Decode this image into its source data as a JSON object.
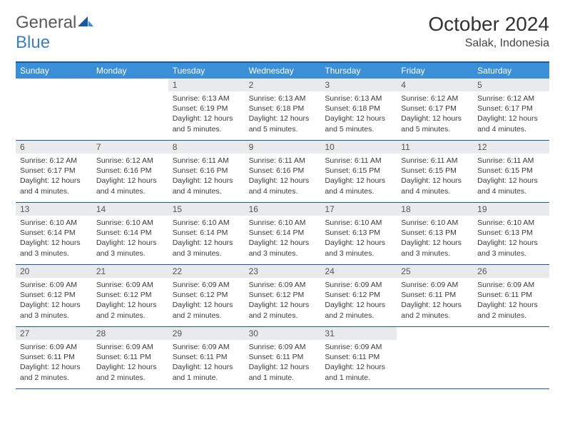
{
  "brand": {
    "word1": "General",
    "word2": "Blue"
  },
  "title": "October 2024",
  "location": "Salak, Indonesia",
  "colors": {
    "header_bar": "#3b8fd6",
    "rule": "#1a5a9e",
    "daynum_bg": "#e9eaeb",
    "text": "#3a3a3a",
    "logo_gray": "#5a5a5a",
    "logo_blue": "#3b7fc4"
  },
  "dow": [
    "Sunday",
    "Monday",
    "Tuesday",
    "Wednesday",
    "Thursday",
    "Friday",
    "Saturday"
  ],
  "weeks": [
    [
      null,
      null,
      {
        "n": "1",
        "sr": "Sunrise: 6:13 AM",
        "ss": "Sunset: 6:19 PM",
        "dl": "Daylight: 12 hours and 5 minutes."
      },
      {
        "n": "2",
        "sr": "Sunrise: 6:13 AM",
        "ss": "Sunset: 6:18 PM",
        "dl": "Daylight: 12 hours and 5 minutes."
      },
      {
        "n": "3",
        "sr": "Sunrise: 6:13 AM",
        "ss": "Sunset: 6:18 PM",
        "dl": "Daylight: 12 hours and 5 minutes."
      },
      {
        "n": "4",
        "sr": "Sunrise: 6:12 AM",
        "ss": "Sunset: 6:17 PM",
        "dl": "Daylight: 12 hours and 5 minutes."
      },
      {
        "n": "5",
        "sr": "Sunrise: 6:12 AM",
        "ss": "Sunset: 6:17 PM",
        "dl": "Daylight: 12 hours and 4 minutes."
      }
    ],
    [
      {
        "n": "6",
        "sr": "Sunrise: 6:12 AM",
        "ss": "Sunset: 6:17 PM",
        "dl": "Daylight: 12 hours and 4 minutes."
      },
      {
        "n": "7",
        "sr": "Sunrise: 6:12 AM",
        "ss": "Sunset: 6:16 PM",
        "dl": "Daylight: 12 hours and 4 minutes."
      },
      {
        "n": "8",
        "sr": "Sunrise: 6:11 AM",
        "ss": "Sunset: 6:16 PM",
        "dl": "Daylight: 12 hours and 4 minutes."
      },
      {
        "n": "9",
        "sr": "Sunrise: 6:11 AM",
        "ss": "Sunset: 6:16 PM",
        "dl": "Daylight: 12 hours and 4 minutes."
      },
      {
        "n": "10",
        "sr": "Sunrise: 6:11 AM",
        "ss": "Sunset: 6:15 PM",
        "dl": "Daylight: 12 hours and 4 minutes."
      },
      {
        "n": "11",
        "sr": "Sunrise: 6:11 AM",
        "ss": "Sunset: 6:15 PM",
        "dl": "Daylight: 12 hours and 4 minutes."
      },
      {
        "n": "12",
        "sr": "Sunrise: 6:11 AM",
        "ss": "Sunset: 6:15 PM",
        "dl": "Daylight: 12 hours and 4 minutes."
      }
    ],
    [
      {
        "n": "13",
        "sr": "Sunrise: 6:10 AM",
        "ss": "Sunset: 6:14 PM",
        "dl": "Daylight: 12 hours and 3 minutes."
      },
      {
        "n": "14",
        "sr": "Sunrise: 6:10 AM",
        "ss": "Sunset: 6:14 PM",
        "dl": "Daylight: 12 hours and 3 minutes."
      },
      {
        "n": "15",
        "sr": "Sunrise: 6:10 AM",
        "ss": "Sunset: 6:14 PM",
        "dl": "Daylight: 12 hours and 3 minutes."
      },
      {
        "n": "16",
        "sr": "Sunrise: 6:10 AM",
        "ss": "Sunset: 6:14 PM",
        "dl": "Daylight: 12 hours and 3 minutes."
      },
      {
        "n": "17",
        "sr": "Sunrise: 6:10 AM",
        "ss": "Sunset: 6:13 PM",
        "dl": "Daylight: 12 hours and 3 minutes."
      },
      {
        "n": "18",
        "sr": "Sunrise: 6:10 AM",
        "ss": "Sunset: 6:13 PM",
        "dl": "Daylight: 12 hours and 3 minutes."
      },
      {
        "n": "19",
        "sr": "Sunrise: 6:10 AM",
        "ss": "Sunset: 6:13 PM",
        "dl": "Daylight: 12 hours and 3 minutes."
      }
    ],
    [
      {
        "n": "20",
        "sr": "Sunrise: 6:09 AM",
        "ss": "Sunset: 6:12 PM",
        "dl": "Daylight: 12 hours and 3 minutes."
      },
      {
        "n": "21",
        "sr": "Sunrise: 6:09 AM",
        "ss": "Sunset: 6:12 PM",
        "dl": "Daylight: 12 hours and 2 minutes."
      },
      {
        "n": "22",
        "sr": "Sunrise: 6:09 AM",
        "ss": "Sunset: 6:12 PM",
        "dl": "Daylight: 12 hours and 2 minutes."
      },
      {
        "n": "23",
        "sr": "Sunrise: 6:09 AM",
        "ss": "Sunset: 6:12 PM",
        "dl": "Daylight: 12 hours and 2 minutes."
      },
      {
        "n": "24",
        "sr": "Sunrise: 6:09 AM",
        "ss": "Sunset: 6:12 PM",
        "dl": "Daylight: 12 hours and 2 minutes."
      },
      {
        "n": "25",
        "sr": "Sunrise: 6:09 AM",
        "ss": "Sunset: 6:11 PM",
        "dl": "Daylight: 12 hours and 2 minutes."
      },
      {
        "n": "26",
        "sr": "Sunrise: 6:09 AM",
        "ss": "Sunset: 6:11 PM",
        "dl": "Daylight: 12 hours and 2 minutes."
      }
    ],
    [
      {
        "n": "27",
        "sr": "Sunrise: 6:09 AM",
        "ss": "Sunset: 6:11 PM",
        "dl": "Daylight: 12 hours and 2 minutes."
      },
      {
        "n": "28",
        "sr": "Sunrise: 6:09 AM",
        "ss": "Sunset: 6:11 PM",
        "dl": "Daylight: 12 hours and 2 minutes."
      },
      {
        "n": "29",
        "sr": "Sunrise: 6:09 AM",
        "ss": "Sunset: 6:11 PM",
        "dl": "Daylight: 12 hours and 1 minute."
      },
      {
        "n": "30",
        "sr": "Sunrise: 6:09 AM",
        "ss": "Sunset: 6:11 PM",
        "dl": "Daylight: 12 hours and 1 minute."
      },
      {
        "n": "31",
        "sr": "Sunrise: 6:09 AM",
        "ss": "Sunset: 6:11 PM",
        "dl": "Daylight: 12 hours and 1 minute."
      },
      null,
      null
    ]
  ]
}
